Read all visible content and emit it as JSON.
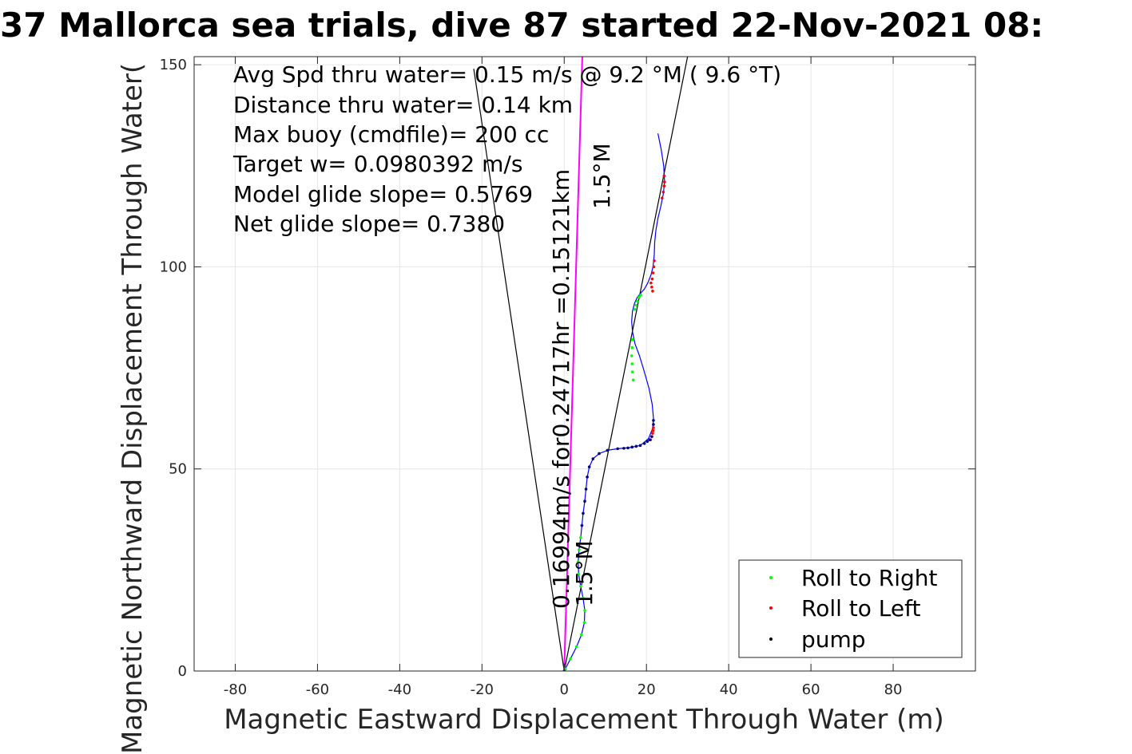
{
  "chart_data": {
    "type": "line",
    "title": "37 Mallorca sea trials, dive 87 started 22-Nov-2021 08:",
    "xlabel": "Magnetic Eastward Displacement Through Water (m)",
    "ylabel": "Magnetic Northward Displacement Through Water(",
    "xlim": [
      -90,
      100
    ],
    "ylim": [
      0,
      152
    ],
    "xticks": [
      -80,
      -60,
      -40,
      -20,
      0,
      20,
      40,
      60,
      80
    ],
    "yticks": [
      0,
      50,
      100,
      150
    ],
    "grid": true,
    "legend_position": "bottom-right",
    "stats": [
      "Avg Spd thru water=  0.15 m/s @   9.2 °M (  9.6 °T)",
      "Distance thru water=  0.14 km",
      "Max buoy (cmdfile)= 200 cc",
      "Target w= 0.0980392 m/s",
      "Model glide slope= 0.5769",
      "Net glide slope= 0.7380"
    ],
    "annotations": {
      "heading_upper": "1.5°M",
      "heading_lower": "1.5°M",
      "track_summary": "0.16994m/s for0.24717hr =0.15121km"
    },
    "legend": [
      {
        "label": "Roll to Right",
        "color": "#00ff00"
      },
      {
        "label": "Roll to Left",
        "color": "#ff0000"
      },
      {
        "label": "pump",
        "color": "#000000"
      }
    ],
    "colors": {
      "track": "#0000ff",
      "avg_heading": "#ff00ff",
      "cone": "#000000",
      "roll_right": "#00ff00",
      "roll_left": "#ff0000",
      "pump": "#000000"
    },
    "cone_lines": [
      {
        "x": [
          0,
          -22
        ],
        "y": [
          0,
          149
        ]
      },
      {
        "x": [
          0,
          30
        ],
        "y": [
          0,
          152
        ]
      }
    ],
    "avg_heading_line": {
      "x": [
        0,
        4.4
      ],
      "y": [
        0,
        152
      ]
    },
    "track": {
      "x": [
        0,
        1.5,
        3,
        4.2,
        4.9,
        5,
        4.6,
        4,
        3.5,
        3.4,
        3.6,
        4,
        4.3,
        4.6,
        5,
        5.3,
        5.6,
        6.1,
        7,
        8.5,
        10.5,
        13,
        16,
        18.5,
        20.5,
        21.5,
        21.7,
        21.4,
        20.6,
        19.5,
        18.3,
        17.2,
        16.6,
        16.4,
        16.6,
        17.1,
        17.8,
        18.6,
        19.5,
        20.3,
        21.1,
        21.6,
        21.9,
        22,
        22.3,
        22.8,
        23.5,
        24.1,
        24.4,
        24.2,
        23.6,
        22.8
      ],
      "y": [
        0,
        3,
        6,
        9,
        12,
        15,
        18,
        21,
        24,
        27,
        30,
        33,
        36,
        39,
        42,
        45,
        48,
        50.5,
        52.5,
        53.8,
        54.6,
        55,
        55.3,
        55.8,
        57.5,
        60,
        62.5,
        66,
        70,
        74,
        78,
        81,
        84,
        86.5,
        89,
        91,
        92.5,
        93.5,
        94.5,
        96,
        98,
        100,
        103,
        106,
        109,
        112,
        115,
        118,
        121,
        125,
        129,
        133
      ]
    },
    "roll_right_points": {
      "x": [
        0.3,
        1.5,
        3,
        4.2,
        4.9,
        5,
        4.6,
        4,
        3.5,
        3.4,
        3.6,
        4,
        16.6,
        16.5,
        16.4,
        16.5,
        16.6,
        16.8,
        17.1,
        17.5,
        17.8,
        18.2,
        18.6
      ],
      "y": [
        0.5,
        3,
        6,
        9,
        12,
        15,
        18,
        21,
        24,
        27,
        30,
        33,
        82,
        80,
        78,
        76,
        74,
        72,
        89.5,
        90.5,
        91.5,
        92.5,
        93
      ]
    },
    "roll_left_points": {
      "x": [
        21,
        21.3,
        21.5,
        21.6,
        21.7,
        21.5,
        21.3,
        21.1,
        21.4,
        21.6,
        21.8,
        21.9,
        23.8,
        24.1,
        24.3,
        24.4,
        24.3
      ],
      "y": [
        57.2,
        58,
        58.8,
        59.5,
        60.2,
        94,
        95,
        96,
        97,
        98.5,
        100,
        101.5,
        117,
        118.5,
        120,
        121,
        122.5
      ]
    },
    "pump_points": {
      "x": [
        0,
        4.3,
        4.6,
        5,
        5.3,
        5.6,
        6.1,
        7,
        8.5,
        10.5,
        13,
        14.5,
        15.5,
        16.5,
        17.5,
        18.5,
        19.5,
        20.2,
        20.8,
        21.3,
        21.7,
        21.7
      ],
      "y": [
        0,
        36,
        39,
        42,
        45,
        48,
        50.5,
        52.5,
        53.8,
        54.6,
        55,
        55.1,
        55.2,
        55.4,
        55.6,
        55.8,
        56.3,
        56.8,
        57.2,
        58,
        61,
        62
      ]
    }
  }
}
